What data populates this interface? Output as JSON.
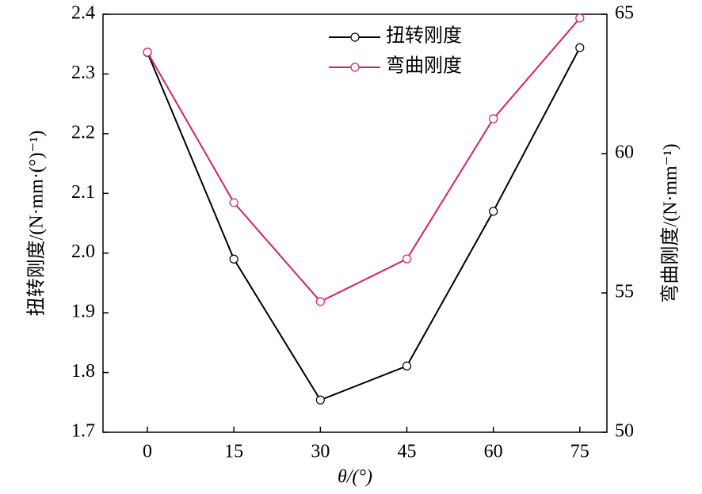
{
  "chart_data": {
    "type": "line",
    "x_label": "θ/(°)",
    "y_label": "扭转刚度/(N·mm·(°)⁻¹)",
    "y2_label": "弯曲刚度/(N·mm⁻¹)",
    "x": [
      0,
      15,
      30,
      45,
      60,
      75
    ],
    "xlim": [
      -7.7,
      79.7
    ],
    "xticks": [
      0,
      15,
      30,
      45,
      60,
      75
    ],
    "ylim": [
      1.7,
      2.4
    ],
    "yticks": [
      1.7,
      1.8,
      1.9,
      {
        "value": 2,
        "label": "2.0"
      },
      2.1,
      2.2,
      2.3,
      2.4
    ],
    "y2lim": [
      50,
      65
    ],
    "y2ticks": [
      50,
      55,
      60,
      65
    ],
    "legend": "upper center",
    "series": [
      {
        "name": "扭转刚度",
        "color": "#000000",
        "values": [
          2.336,
          1.99,
          1.754,
          1.811,
          2.07,
          2.344
        ]
      },
      {
        "name": "弯曲刚度",
        "color": "#d6206b",
        "axis": "y2",
        "values": [
          63.64,
          58.24,
          54.69,
          56.22,
          61.25,
          64.86
        ]
      }
    ]
  }
}
